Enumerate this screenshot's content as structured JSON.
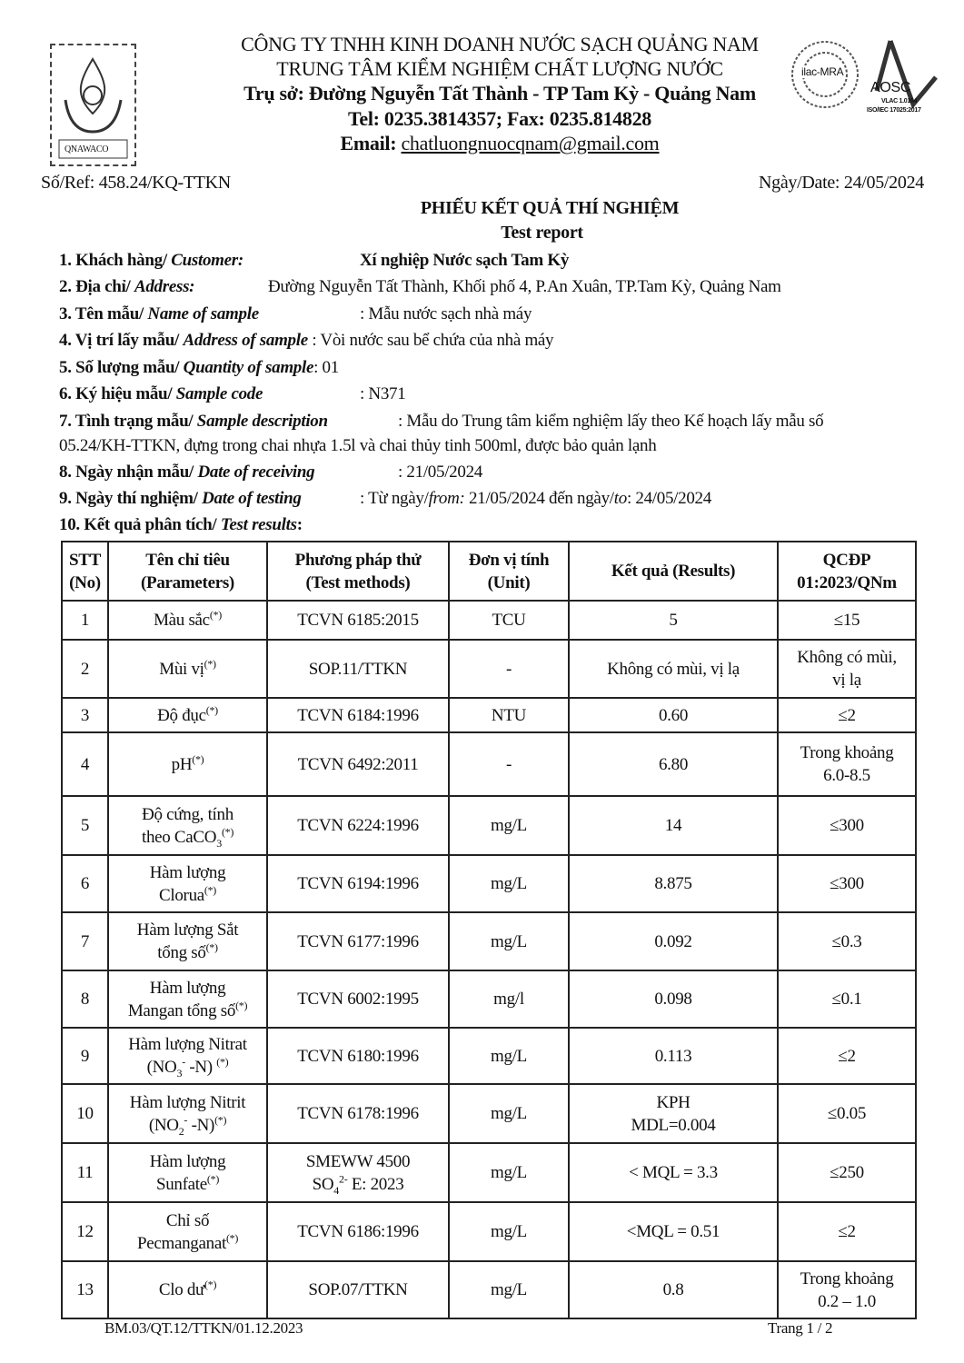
{
  "header": {
    "company": "CÔNG TY TNHH KINH DOANH NƯỚC SẠCH QUẢNG NAM",
    "center": "TRUNG TÂM KIỂM NGHIỆM CHẤT LƯỢNG NƯỚC",
    "address": "Trụ sở: Đường Nguyễn Tất Thành - TP Tam Kỳ -  Quảng Nam",
    "phone": "Tel: 0235.3814357; Fax: 0235.814828",
    "email_label": "Email:",
    "email": "chatluongnuocqnam@gmail.com",
    "logo_left_text": "QNAWACO",
    "logo_ilac_text": "ilac-MRA",
    "logo_aosc_text": "AOSC",
    "logo_aosc_sub1": "VLAC 1.0164",
    "logo_aosc_sub2": "ISO/IEC 17025:2017"
  },
  "ref": "Số/Ref: 458.24/KQ-TTKN",
  "date": "Ngày/Date: 24/05/2024",
  "title": "PHIẾU KẾT QUẢ THÍ NGHIỆM",
  "subtitle": "Test report",
  "info": [
    {
      "label": "1. Khách hàng/ ",
      "label_en": "Customer:",
      "value": "Xí nghiệp Nước sạch Tam Kỳ"
    },
    {
      "label": "2. Địa chỉ/ ",
      "label_en": "Address:",
      "value": "Đường Nguyễn Tất Thành, Khối phố 4, P.An Xuân, TP.Tam Kỳ, Quảng Nam"
    },
    {
      "label": "3. Tên mẫu/ ",
      "label_en": "Name of sample",
      "value": ": Mẫu nước sạch nhà máy"
    },
    {
      "label": "4. Vị trí lấy mẫu/ ",
      "label_en": "Address of sample",
      "value": ": Vòi nước sau bể chứa của nhà máy"
    },
    {
      "label": "5. Số lượng mẫu/ ",
      "label_en": "Quantity of sample",
      "value": ": 01"
    },
    {
      "label": "6. Ký hiệu mẫu/ ",
      "label_en": "Sample code",
      "value": ": N371"
    },
    {
      "label": "7. Tình trạng mẫu/ ",
      "label_en": "Sample description",
      "value": ": Mẫu do Trung tâm kiểm nghiệm lấy theo Kế hoạch lấy mẫu số",
      "value2": "05.24/KH-TTKN, đựng trong chai nhựa 1.5l và chai thủy tinh 500ml, được bảo quản lạnh"
    },
    {
      "label": "8. Ngày nhận mẫu/ ",
      "label_en": "Date of receiving",
      "value": ": 21/05/2024"
    },
    {
      "label": "9. Ngày thí nghiệm/ ",
      "label_en": "Date of testing",
      "value": ": Từ ngày/",
      "from_label": "from:",
      "from": " 21/05/2024  đến ngày/",
      "to_label": "to",
      "to": ": 24/05/2024"
    },
    {
      "label": "10. Kết quả phân tích/ ",
      "label_en": "Test results",
      "value": ":"
    }
  ],
  "table": {
    "headers": [
      "STT (No)",
      "Tên chỉ tiêu (Parameters)",
      "Phương pháp thử (Test methods)",
      "Đơn vị tính (Unit)",
      "Kết quả (Results)",
      "QCĐP 01:2023/QNm"
    ],
    "header_lines": [
      [
        "STT",
        "(No)"
      ],
      [
        "Tên chỉ tiêu",
        "(Parameters)"
      ],
      [
        "Phương pháp thử",
        "(Test methods)"
      ],
      [
        "Đơn vị tính",
        "(Unit)"
      ],
      [
        "Kết quả (Results)"
      ],
      [
        "QCĐP",
        "01:2023/QNm"
      ]
    ],
    "rows": [
      {
        "no": "1",
        "param": [
          {
            "t": "Màu sắc"
          },
          {
            "sup": "(*)"
          }
        ],
        "method": [
          {
            "t": "TCVN 6185:2015"
          }
        ],
        "unit": "TCU",
        "result": [
          {
            "t": "5"
          }
        ],
        "limit": [
          {
            "t": "≤15"
          }
        ]
      },
      {
        "no": "2",
        "param": [
          {
            "t": "Mùi vị"
          },
          {
            "sup": "(*)"
          }
        ],
        "method": [
          {
            "t": "SOP.11/TTKN"
          }
        ],
        "unit": "-",
        "result": [
          {
            "t": "Không có mùi, vị lạ"
          }
        ],
        "limit": [
          {
            "t": "Không có mùi,"
          },
          {
            "br": 1
          },
          {
            "t": "vị lạ"
          }
        ]
      },
      {
        "no": "3",
        "param": [
          {
            "t": "Độ đục"
          },
          {
            "sup": "(*)"
          }
        ],
        "method": [
          {
            "t": "TCVN 6184:1996"
          }
        ],
        "unit": "NTU",
        "result": [
          {
            "t": "0.60"
          }
        ],
        "limit": [
          {
            "t": "≤2"
          }
        ]
      },
      {
        "no": "4",
        "param": [
          {
            "t": "pH"
          },
          {
            "sup": "(*)"
          }
        ],
        "method": [
          {
            "t": "TCVN 6492:2011"
          }
        ],
        "unit": "-",
        "result": [
          {
            "t": "6.80"
          }
        ],
        "limit": [
          {
            "t": "Trong khoảng"
          },
          {
            "br": 1
          },
          {
            "t": "6.0-8.5"
          }
        ]
      },
      {
        "no": "5",
        "param": [
          {
            "t": "Độ cứng, tính"
          },
          {
            "br": 1
          },
          {
            "t": "theo CaCO"
          },
          {
            "sub": "3"
          },
          {
            "sup": "(*)"
          }
        ],
        "method": [
          {
            "t": "TCVN 6224:1996"
          }
        ],
        "unit": "mg/L",
        "result": [
          {
            "t": "14"
          }
        ],
        "limit": [
          {
            "t": "≤300"
          }
        ]
      },
      {
        "no": "6",
        "param": [
          {
            "t": "Hàm lượng"
          },
          {
            "br": 1
          },
          {
            "t": "Clorua"
          },
          {
            "sup": "(*)"
          }
        ],
        "method": [
          {
            "t": "TCVN 6194:1996"
          }
        ],
        "unit": "mg/L",
        "result": [
          {
            "t": "8.875"
          }
        ],
        "limit": [
          {
            "t": "≤300"
          }
        ]
      },
      {
        "no": "7",
        "param": [
          {
            "t": "Hàm lượng Sắt"
          },
          {
            "br": 1
          },
          {
            "t": "tổng số"
          },
          {
            "sup": "(*)"
          }
        ],
        "method": [
          {
            "t": "TCVN 6177:1996"
          }
        ],
        "unit": "mg/L",
        "result": [
          {
            "t": "0.092"
          }
        ],
        "limit": [
          {
            "t": "≤0.3"
          }
        ]
      },
      {
        "no": "8",
        "param": [
          {
            "t": "Hàm lượng"
          },
          {
            "br": 1
          },
          {
            "t": "Mangan tổng số"
          },
          {
            "sup": "(*)"
          }
        ],
        "method": [
          {
            "t": "TCVN 6002:1995"
          }
        ],
        "unit": "mg/l",
        "result": [
          {
            "t": "0.098"
          }
        ],
        "limit": [
          {
            "t": "≤0.1"
          }
        ]
      },
      {
        "no": "9",
        "param": [
          {
            "t": "Hàm lượng Nitrat"
          },
          {
            "br": 1
          },
          {
            "t": "(NO"
          },
          {
            "sub": "3"
          },
          {
            "sup": "-"
          },
          {
            "t": " -N) "
          },
          {
            "sup": "(*)"
          }
        ],
        "method": [
          {
            "t": "TCVN 6180:1996"
          }
        ],
        "unit": "mg/L",
        "result": [
          {
            "t": "0.113"
          }
        ],
        "limit": [
          {
            "t": "≤2"
          }
        ]
      },
      {
        "no": "10",
        "param": [
          {
            "t": "Hàm lượng Nitrit"
          },
          {
            "br": 1
          },
          {
            "t": "(NO"
          },
          {
            "sub": "2"
          },
          {
            "sup": "-"
          },
          {
            "t": " -N)"
          },
          {
            "sup": "(*)"
          }
        ],
        "method": [
          {
            "t": "TCVN 6178:1996"
          }
        ],
        "unit": "mg/L",
        "result": [
          {
            "t": "KPH"
          },
          {
            "br": 1
          },
          {
            "t": "MDL=0.004"
          }
        ],
        "limit": [
          {
            "t": "≤0.05"
          }
        ]
      },
      {
        "no": "11",
        "param": [
          {
            "t": "Hàm lượng"
          },
          {
            "br": 1
          },
          {
            "t": "Sunfate"
          },
          {
            "sup": "(*)"
          }
        ],
        "method": [
          {
            "t": "SMEWW 4500"
          },
          {
            "br": 1
          },
          {
            "t": "SO"
          },
          {
            "sub": "4"
          },
          {
            "sup": "2-"
          },
          {
            "t": " E: 2023"
          }
        ],
        "unit": "mg/L",
        "result": [
          {
            "t": "< MQL = 3.3"
          }
        ],
        "limit": [
          {
            "t": "≤250"
          }
        ]
      },
      {
        "no": "12",
        "param": [
          {
            "t": "Chỉ số"
          },
          {
            "br": 1
          },
          {
            "t": "Pecmanganat"
          },
          {
            "sup": "(*)"
          }
        ],
        "method": [
          {
            "t": "TCVN 6186:1996"
          }
        ],
        "unit": "mg/L",
        "result": [
          {
            "t": "<MQL = 0.51"
          }
        ],
        "limit": [
          {
            "t": "≤2"
          }
        ]
      },
      {
        "no": "13",
        "param": [
          {
            "t": "Clo dư"
          },
          {
            "sup": "(*)"
          }
        ],
        "method": [
          {
            "t": "SOP.07/TTKN"
          }
        ],
        "unit": "mg/L",
        "result": [
          {
            "t": "0.8"
          }
        ],
        "limit": [
          {
            "t": "Trong khoảng"
          },
          {
            "br": 1
          },
          {
            "t": "0.2 – 1.0"
          }
        ]
      }
    ]
  },
  "footer": {
    "form_code": "BM.03/QT.12/TTKN/01.12.2023",
    "page": "Trang 1 / 2"
  }
}
